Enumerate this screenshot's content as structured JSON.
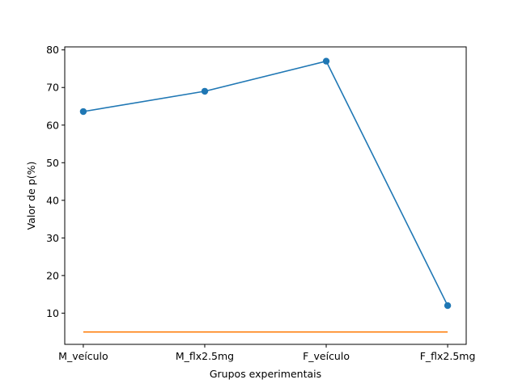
{
  "chart_data": {
    "type": "line",
    "title": "",
    "xlabel": "Grupos experimentais",
    "ylabel": "Valor de p(%)",
    "categories": [
      "M_veículo",
      "M_flx2.5mg",
      "F_veículo",
      "F_flx2.5mg"
    ],
    "ylim": [
      1.7,
      80.8
    ],
    "yticks": [
      10,
      20,
      30,
      40,
      50,
      60,
      70,
      80
    ],
    "grid": false,
    "legend": "none",
    "series": [
      {
        "values": [
          63.6,
          69.0,
          77.0,
          12.0
        ],
        "color": "#1f77b4",
        "marker": "circle"
      },
      {
        "values": [
          5,
          5,
          5,
          5
        ],
        "color": "#ff7f0e",
        "marker": "none"
      }
    ]
  }
}
